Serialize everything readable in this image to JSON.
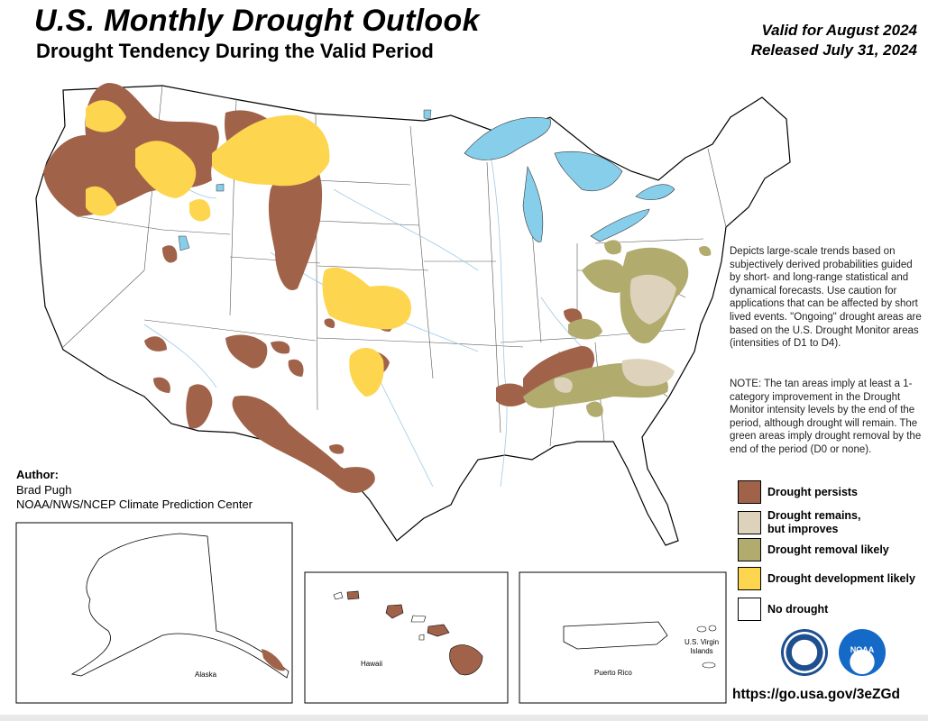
{
  "header": {
    "title": "U.S. Monthly Drought Outlook",
    "subtitle": "Drought Tendency During the Valid Period",
    "valid": "Valid for August 2024",
    "released": "Released July 31, 2024"
  },
  "description": {
    "text": "Depicts large-scale trends based on subjectively derived probabilities guided by short- and long-range statistical and dynamical forecasts. Use caution for applications that can be affected by short lived events. \"Ongoing\" drought areas are based on the U.S. Drought Monitor areas (intensities of D1 to D4).",
    "note": "NOTE: The tan areas imply at least a 1-category improvement in the Drought Monitor intensity levels by the end of the period, although drought will remain. The green areas imply drought removal by the end of the period (D0 or none)."
  },
  "author": {
    "heading": "Author:",
    "name": "Brad Pugh",
    "org": "NOAA/NWS/NCEP Climate Prediction Center"
  },
  "legend": [
    {
      "label": "Drought persists",
      "color": "#a0634a"
    },
    {
      "label": "Drought remains,\nbut improves",
      "color": "#ddd3bd"
    },
    {
      "label": "Drought removal likely",
      "color": "#b1ab6e"
    },
    {
      "label": "Drought development likely",
      "color": "#fed54e"
    },
    {
      "label": "No drought",
      "color": "#ffffff"
    }
  ],
  "insets": {
    "alaska": "Alaska",
    "hawaii": "Hawaii",
    "puerto_rico": "Puerto Rico",
    "virgin_islands": "U.S. Virgin Islands"
  },
  "logos": {
    "noaa": "NOAA"
  },
  "url": "https://go.usa.gov/3eZGd",
  "colors": {
    "persists": "#a0634a",
    "improves": "#ddd3bd",
    "removal": "#b1ab6e",
    "development": "#fed54e",
    "water": "#87ceeb",
    "river": "#9ec9e6",
    "border": "#000000"
  }
}
